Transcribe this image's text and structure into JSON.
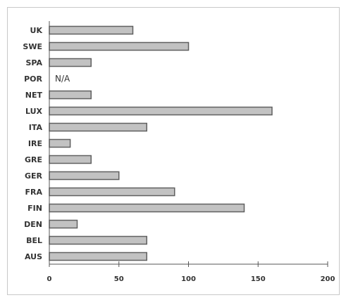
{
  "chart_data": {
    "type": "bar",
    "orientation": "horizontal",
    "categories": [
      "UK",
      "SWE",
      "SPA",
      "POR",
      "NET",
      "LUX",
      "ITA",
      "IRE",
      "GRE",
      "GER",
      "FRA",
      "FIN",
      "DEN",
      "BEL",
      "AUS"
    ],
    "values": [
      60,
      100,
      30,
      null,
      30,
      160,
      70,
      15,
      30,
      50,
      90,
      140,
      20,
      70,
      70
    ],
    "annotations": [
      {
        "category": "POR",
        "text": "N/A"
      }
    ],
    "xlim": [
      0,
      200
    ],
    "x_ticks": [
      0,
      50,
      100,
      150,
      200
    ],
    "title": "",
    "xlabel": "",
    "ylabel": "",
    "grid": false,
    "legend": "none",
    "colors": {
      "bar_fill": "#c2c2c2",
      "bar_edge": "#606060",
      "axis": "#555555"
    }
  }
}
